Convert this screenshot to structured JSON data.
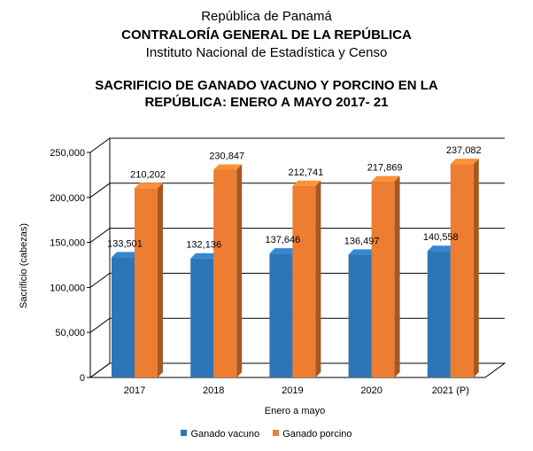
{
  "header": {
    "country": "República de Panamá",
    "agency": "CONTRALORÍA GENERAL DE LA REPÚBLICA",
    "institute": "Instituto  Nacional de Estadística y Censo",
    "title_line1": "SACRIFICIO DE GANADO VACUNO Y PORCINO EN LA",
    "title_line2": "REPÚBLICA: ENERO A MAYO 2017- 21"
  },
  "chart_data": {
    "type": "bar",
    "title": "SACRIFICIO DE GANADO VACUNO Y PORCINO EN LA REPÚBLICA: ENERO A MAYO 2017- 21",
    "categories": [
      "2017",
      "2018",
      "2019",
      "2020",
      "2021 (P)"
    ],
    "series": [
      {
        "name": "Ganado vacuno",
        "color": "#2E75B6",
        "values": [
          133501,
          132136,
          137646,
          136497,
          140558
        ],
        "labels": [
          "133,501",
          "132,136",
          "137,646",
          "136,497",
          "140,558"
        ]
      },
      {
        "name": "Ganado porcino",
        "color": "#ED7D31",
        "values": [
          210202,
          230847,
          212741,
          217869,
          237082
        ],
        "labels": [
          "210,202",
          "230,847",
          "212,741",
          "217,869",
          "237,082"
        ]
      }
    ],
    "xlabel": "Enero a mayo",
    "ylabel": "Sacrificio (cabezas)",
    "ylim": [
      0,
      250000
    ],
    "yticks": [
      0,
      50000,
      100000,
      150000,
      200000,
      250000
    ],
    "ytick_labels": [
      "0",
      "50,000",
      "100,000",
      "150,000",
      "200,000",
      "250,000"
    ],
    "grid": true,
    "legend": "bottom"
  }
}
